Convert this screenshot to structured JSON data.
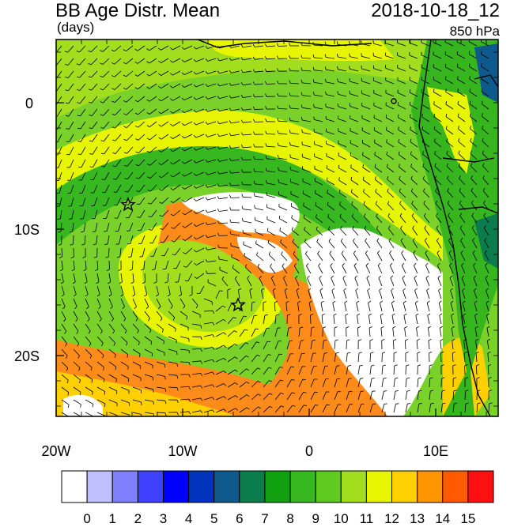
{
  "header": {
    "title": "BB Age Distr. Mean",
    "date": "2018-10-18_12",
    "units": "(days)",
    "level": "850 hPa"
  },
  "axes": {
    "lon_labels": [
      "20W",
      "10W",
      "0",
      "10E"
    ],
    "lat_labels": [
      "0",
      "10S",
      "20S"
    ]
  },
  "colorbar": {
    "labels": [
      "0",
      "1",
      "2",
      "3",
      "4",
      "5",
      "6",
      "7",
      "8",
      "9",
      "10",
      "11",
      "12",
      "13",
      "14",
      "15"
    ],
    "colors": [
      "#ffffff",
      "#c0c0ff",
      "#8080ff",
      "#4040ff",
      "#0000ff",
      "#0033bb",
      "#0f5a8c",
      "#0b7d4c",
      "#10a010",
      "#38b820",
      "#5fca20",
      "#a2dd1e",
      "#e8f500",
      "#ffd000",
      "#ff9600",
      "#ff5a00",
      "#ff1010"
    ]
  },
  "markers": {
    "stars": 2
  },
  "colors": {
    "land_green": "#36b51f",
    "ocean_light_green": "#7ad12a",
    "haze_yellow": "#e6f008",
    "aged_orange": "#ff8c1a",
    "clean_white": "#ffffff"
  }
}
